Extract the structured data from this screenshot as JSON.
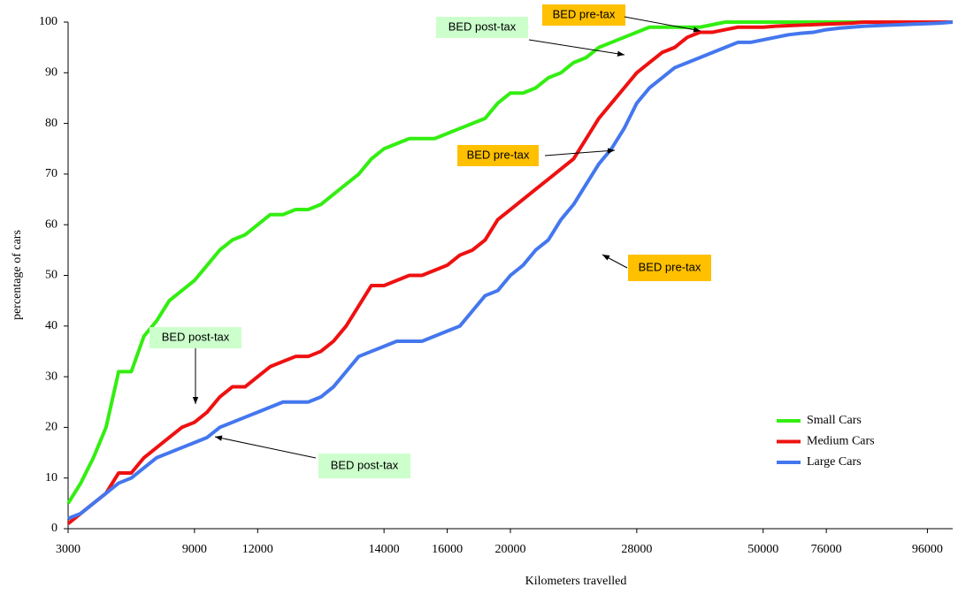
{
  "chart_data": {
    "type": "line",
    "xlabel": "Kilometers travelled",
    "ylabel": "percentage of cars",
    "categories": [
      "3000",
      null,
      null,
      null,
      null,
      null,
      null,
      null,
      null,
      null,
      "9000",
      null,
      null,
      null,
      null,
      "12000",
      null,
      null,
      null,
      null,
      null,
      null,
      null,
      null,
      null,
      "14000",
      null,
      null,
      null,
      null,
      "16000",
      null,
      null,
      null,
      null,
      "20000",
      null,
      null,
      null,
      null,
      null,
      null,
      null,
      null,
      null,
      "28000",
      null,
      null,
      null,
      null,
      null,
      null,
      null,
      null,
      null,
      "50000",
      null,
      null,
      null,
      null,
      "76000",
      null,
      null,
      null,
      null,
      null,
      null,
      null,
      "96000",
      null,
      null
    ],
    "series": [
      {
        "name": "Small Cars",
        "color": "#33ee11",
        "values": [
          5,
          9,
          14,
          20,
          31,
          31,
          38,
          41,
          45,
          47,
          49,
          52,
          55,
          57,
          58,
          60,
          62,
          62,
          63,
          63,
          64,
          66,
          68,
          70,
          73,
          75,
          76,
          77,
          77,
          77,
          78,
          79,
          80,
          81,
          84,
          86,
          86,
          87,
          89,
          90,
          92,
          93,
          95,
          96,
          97,
          98,
          99,
          99,
          99,
          99,
          99,
          99.5,
          100,
          100,
          100,
          100,
          100,
          100,
          100,
          100,
          100,
          100,
          100,
          100,
          100,
          100,
          100,
          100,
          100,
          100,
          100
        ]
      },
      {
        "name": "Medium Cars",
        "color": "#ee1111",
        "values": [
          1,
          3,
          5,
          7,
          11,
          11,
          14,
          16,
          18,
          20,
          21,
          23,
          26,
          28,
          28,
          30,
          32,
          33,
          34,
          34,
          35,
          37,
          40,
          44,
          48,
          48,
          49,
          50,
          50,
          51,
          52,
          54,
          55,
          57,
          61,
          63,
          65,
          67,
          69,
          71,
          73,
          77,
          81,
          84,
          87,
          90,
          92,
          94,
          95,
          97,
          98,
          98,
          98.5,
          99,
          99,
          99,
          99.2,
          99.3,
          99.4,
          99.5,
          99.6,
          99.7,
          99.8,
          100,
          100,
          100,
          100,
          100,
          100,
          100,
          100
        ]
      },
      {
        "name": "Large Cars",
        "color": "#4477ee",
        "values": [
          2,
          3,
          5,
          7,
          9,
          10,
          12,
          14,
          15,
          16,
          17,
          18,
          20,
          21,
          22,
          23,
          24,
          25,
          25,
          25,
          26,
          28,
          31,
          34,
          35,
          36,
          37,
          37,
          37,
          38,
          39,
          40,
          43,
          46,
          47,
          50,
          52,
          55,
          57,
          61,
          64,
          68,
          72,
          75,
          79,
          84,
          87,
          89,
          91,
          92,
          93,
          94,
          95,
          96,
          96,
          96.5,
          97,
          97.5,
          97.8,
          98,
          98.5,
          98.8,
          99,
          99.2,
          99.3,
          99.4,
          99.5,
          99.6,
          99.7,
          99.8,
          100
        ]
      }
    ],
    "ylim": [
      0,
      100
    ],
    "yticks": [
      0,
      10,
      20,
      30,
      40,
      50,
      60,
      70,
      80,
      90,
      100
    ],
    "grid": false,
    "legend": "lower right",
    "annotations": [
      {
        "text": "BED post-tax",
        "color": "#ccffcc"
      },
      {
        "text": "BED pre-tax",
        "color": "#ffc000"
      },
      {
        "text": "BED pre-tax",
        "color": "#ffc000"
      },
      {
        "text": "BED pre-tax",
        "color": "#ffc000"
      },
      {
        "text": "BED post-tax",
        "color": "#ccffcc"
      },
      {
        "text": "BED post-tax",
        "color": "#ccffcc"
      }
    ]
  }
}
